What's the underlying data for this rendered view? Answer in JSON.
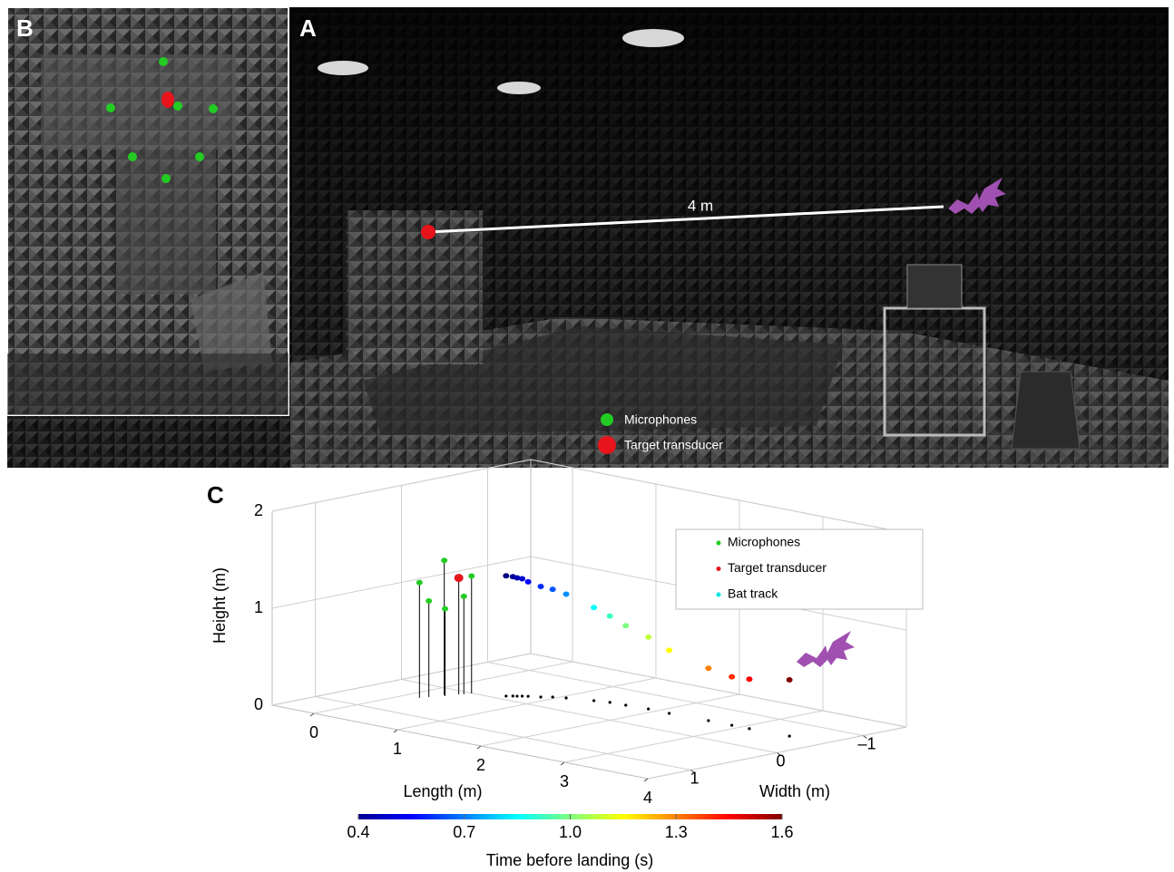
{
  "panel_a": {
    "label": "A",
    "distance": "4 m",
    "legend": [
      "Microphones",
      "Target transducer"
    ]
  },
  "panel_b": {
    "label": "B"
  },
  "chart_data": {
    "type": "scatter3d",
    "panel_label": "C",
    "xlabel": "Length (m)",
    "ylabel": "Width (m)",
    "zlabel": "Height (m)",
    "xlim": [
      -0.5,
      4
    ],
    "ylim": [
      -1.5,
      1.5
    ],
    "zlim": [
      0,
      2
    ],
    "xticks": [
      0,
      1,
      2,
      3,
      4
    ],
    "yticks": [
      1,
      0,
      {
        "value": -1,
        "label": "–1"
      }
    ],
    "zticks": [
      0,
      1,
      2
    ],
    "grid": true,
    "series": [
      {
        "name": "Microphones",
        "color": "#22cc22",
        "x": [
          0.17,
          0.2,
          0.24,
          0.27,
          0.33,
          0.35
        ],
        "y": [
          0.44,
          0.36,
          0.22,
          0.24,
          0.08,
          0.01
        ],
        "z": [
          1.19,
          0.99,
          1.39,
          0.9,
          1.01,
          1.21
        ]
      },
      {
        "name": "Target transducer",
        "color": "#e8141c",
        "x": [
          0.3
        ],
        "y": [
          0.11
        ],
        "z": [
          1.2
        ]
      },
      {
        "name": "Bat track",
        "color": "#00e5e5",
        "x": [
          0.64,
          0.68,
          0.71,
          0.74,
          0.78,
          0.88,
          0.95,
          1.06,
          1.31,
          1.46,
          1.64,
          1.89,
          2.15,
          2.61,
          2.89,
          3.1,
          3.57
        ],
        "y": [
          -0.11,
          -0.15,
          -0.17,
          -0.2,
          -0.23,
          -0.28,
          -0.35,
          -0.4,
          -0.48,
          -0.52,
          -0.53,
          -0.55,
          -0.54,
          -0.55,
          -0.55,
          -0.55,
          -0.56
        ],
        "z": [
          1.24,
          1.23,
          1.22,
          1.21,
          1.18,
          1.14,
          1.11,
          1.07,
          0.96,
          0.89,
          0.82,
          0.74,
          0.65,
          0.54,
          0.5,
          0.51,
          0.58
        ],
        "t": [
          0.4,
          0.43,
          0.46,
          0.5,
          0.55,
          0.6,
          0.65,
          0.72,
          0.85,
          0.92,
          1.0,
          1.08,
          1.15,
          1.3,
          1.4,
          1.45,
          1.6
        ]
      }
    ],
    "colorbar": {
      "label": "Time before landing (s)",
      "lim": [
        0.4,
        1.6
      ],
      "ticks": [
        0.4,
        0.7,
        {
          "value": 1,
          "label": "1.0"
        },
        1.3,
        1.6
      ],
      "colormap": "jet"
    }
  }
}
